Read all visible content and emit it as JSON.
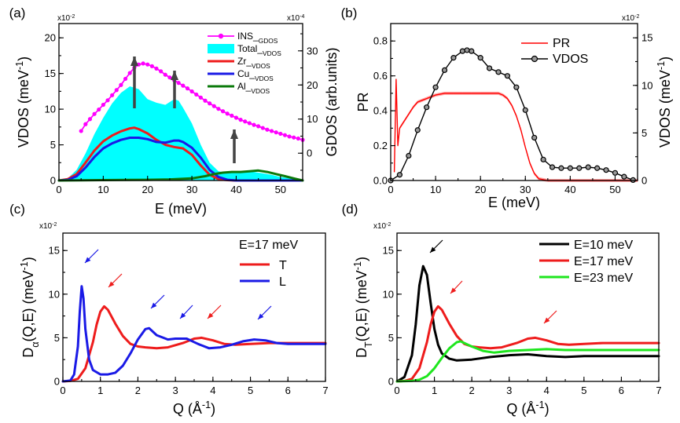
{
  "chart_data": [
    {
      "type": "area",
      "panel_label": "(a)",
      "xlabel": "E (meV)",
      "ylabel": "VDOS (meV⁻¹)",
      "ylabel_right": "GDOS (arb.units)",
      "y_multiplier": "x10⁻²",
      "y_right_multiplier": "x10⁻⁴",
      "xlim": [
        0,
        55
      ],
      "ylim": [
        0,
        22
      ],
      "y_right_lim": [
        -8,
        38
      ],
      "xticks": [
        0,
        10,
        20,
        30,
        40,
        50
      ],
      "yticks": [
        0,
        5,
        10,
        15,
        20
      ],
      "y_right_ticks": [
        0,
        10,
        20,
        30
      ],
      "legend_position": "top-right",
      "series": [
        {
          "name": "INS_GDOS",
          "axis": "right",
          "color": "#ff00ff",
          "marker": "circle",
          "x": [
            5,
            6,
            7,
            8,
            9,
            10,
            11,
            12,
            13,
            14,
            15,
            16,
            17,
            18,
            19,
            20,
            21,
            22,
            23,
            24,
            25,
            26,
            27,
            28,
            29,
            30,
            31,
            32,
            33,
            34,
            35,
            36,
            37,
            38,
            39,
            40,
            41,
            42,
            43,
            44,
            45,
            46,
            47,
            48,
            49,
            50,
            51,
            52,
            53,
            54,
            55
          ],
          "y": [
            6.5,
            8.5,
            10.0,
            11.5,
            12.8,
            14.2,
            15.5,
            17.0,
            18.5,
            20.0,
            21.8,
            23.5,
            25.0,
            26.0,
            26.3,
            26.0,
            25.5,
            24.8,
            24.0,
            23.0,
            22.2,
            21.4,
            20.6,
            19.8,
            19.0,
            18.1,
            17.2,
            16.3,
            15.4,
            14.6,
            13.8,
            13.0,
            12.3,
            11.6,
            11.0,
            10.4,
            9.8,
            9.3,
            8.8,
            8.3,
            7.9,
            7.4,
            6.9,
            6.5,
            6.1,
            5.7,
            5.3,
            4.9,
            4.6,
            4.3,
            3.9
          ]
        },
        {
          "name": "Total",
          "color": "#00ffff",
          "fill": true,
          "x": [
            0,
            2,
            4,
            6,
            8,
            10,
            12,
            14,
            16,
            18,
            20,
            22,
            24,
            26,
            27,
            28,
            30,
            32,
            34,
            36,
            38,
            40,
            42,
            44,
            46,
            48,
            50,
            52,
            54,
            55
          ],
          "y": [
            0,
            0.3,
            1.5,
            3.8,
            6.5,
            8.8,
            10.8,
            12.3,
            13.2,
            12.8,
            11.4,
            10.9,
            10.6,
            11.4,
            11.2,
            10.2,
            8.0,
            5.0,
            2.5,
            1.3,
            1.1,
            1.2,
            1.3,
            1.2,
            1.0,
            0.8,
            0.5,
            0.3,
            0.1,
            0
          ]
        },
        {
          "name": "Zr",
          "color": "#ee1c1c",
          "x": [
            0,
            2,
            4,
            6,
            8,
            10,
            12,
            14,
            16,
            17,
            18,
            20,
            22,
            24,
            26,
            28,
            30,
            32,
            34,
            36,
            38,
            40,
            42,
            45,
            50,
            55
          ],
          "y": [
            0,
            0.2,
            0.9,
            2.5,
            4.2,
            5.5,
            6.3,
            6.9,
            7.3,
            7.4,
            7.2,
            6.6,
            5.7,
            5.0,
            4.7,
            4.5,
            3.6,
            2.1,
            0.8,
            0.2,
            0.05,
            0,
            0,
            0,
            0,
            0
          ]
        },
        {
          "name": "Cu",
          "color": "#1a1ae6",
          "x": [
            0,
            2,
            4,
            6,
            8,
            10,
            12,
            14,
            16,
            18,
            20,
            22,
            24,
            26,
            27,
            28,
            30,
            32,
            34,
            36,
            38,
            40,
            45,
            50,
            55
          ],
          "y": [
            0,
            0.1,
            0.6,
            1.8,
            3.3,
            4.5,
            5.2,
            5.7,
            6.0,
            6.0,
            5.8,
            5.4,
            5.3,
            5.6,
            5.6,
            5.4,
            4.6,
            3.2,
            1.5,
            0.5,
            0.1,
            0,
            0,
            0,
            0
          ]
        },
        {
          "name": "Al",
          "color": "#0b7a0b",
          "x": [
            0,
            5,
            10,
            15,
            20,
            25,
            30,
            33,
            35,
            37,
            39,
            41,
            43,
            45,
            47,
            49,
            51,
            53,
            55
          ],
          "y": [
            0,
            0.02,
            0.05,
            0.08,
            0.1,
            0.15,
            0.3,
            0.6,
            0.9,
            1.1,
            1.2,
            1.2,
            1.3,
            1.4,
            1.2,
            0.9,
            0.6,
            0.3,
            0
          ]
        }
      ]
    },
    {
      "type": "line",
      "panel_label": "(b)",
      "xlabel": "E (meV)",
      "ylabel": "PR",
      "ylabel_right": "VDOS (meV⁻¹)",
      "y_right_multiplier": "x10⁻²",
      "xlim": [
        0,
        55
      ],
      "ylim": [
        0,
        0.9
      ],
      "y_right_lim": [
        0,
        16.5
      ],
      "xticks": [
        0,
        10,
        20,
        30,
        40,
        50
      ],
      "yticks": [
        0.0,
        0.2,
        0.4,
        0.6,
        0.8
      ],
      "y_right_ticks": [
        0,
        5,
        10,
        15
      ],
      "legend_position": "top-right",
      "series": [
        {
          "name": "PR",
          "color": "#ff0000",
          "x": [
            0.8,
            1.2,
            1.6,
            2,
            3,
            4,
            5,
            6,
            7,
            8,
            10,
            12,
            14,
            16,
            18,
            20,
            22,
            24,
            25,
            26,
            27,
            28,
            29,
            30,
            31,
            32,
            33,
            35,
            40,
            45,
            50,
            55
          ],
          "y": [
            0.05,
            0.58,
            0.2,
            0.3,
            0.34,
            0.38,
            0.42,
            0.45,
            0.46,
            0.47,
            0.49,
            0.5,
            0.5,
            0.5,
            0.5,
            0.5,
            0.5,
            0.5,
            0.49,
            0.47,
            0.43,
            0.37,
            0.29,
            0.19,
            0.1,
            0.04,
            0.01,
            0,
            0,
            0,
            0,
            0
          ]
        },
        {
          "name": "VDOS",
          "axis": "right",
          "color": "#000000",
          "marker": "circle-open",
          "x": [
            0,
            2,
            4,
            6,
            8,
            10,
            12,
            14,
            16,
            17,
            18,
            20,
            22,
            24,
            26,
            28,
            30,
            32,
            34,
            36,
            38,
            40,
            42,
            44,
            46,
            48,
            50,
            52,
            54
          ],
          "y": [
            0,
            0.6,
            2.6,
            5.3,
            7.7,
            9.8,
            11.6,
            12.9,
            13.6,
            13.7,
            13.6,
            12.9,
            11.8,
            11.4,
            11.0,
            9.8,
            7.4,
            4.5,
            2.2,
            1.4,
            1.3,
            1.3,
            1.3,
            1.4,
            1.3,
            1.1,
            0.8,
            0.4,
            0.05
          ]
        }
      ]
    },
    {
      "type": "line",
      "panel_label": "(c)",
      "xlabel": "Q (Å⁻¹)",
      "ylabel": "Dα(Q,E) (meV⁻¹)",
      "y_multiplier": "x10⁻²",
      "xlim": [
        0,
        7
      ],
      "ylim": [
        0,
        17
      ],
      "xticks": [
        0,
        1,
        2,
        3,
        4,
        5,
        6,
        7
      ],
      "yticks": [
        0,
        5,
        10,
        15
      ],
      "legend_title": "E=17 meV",
      "legend_position": "top-right",
      "series": [
        {
          "name": "T",
          "color": "#ee1c1c",
          "x": [
            0,
            0.2,
            0.4,
            0.6,
            0.8,
            0.9,
            1.0,
            1.1,
            1.2,
            1.4,
            1.6,
            1.8,
            2.0,
            2.2,
            2.5,
            2.8,
            3.2,
            3.5,
            3.7,
            4.0,
            4.3,
            4.6,
            5.0,
            5.5,
            6.0,
            6.5,
            7.0
          ],
          "y": [
            0,
            0.05,
            0.3,
            1.5,
            4.5,
            6.5,
            8.0,
            8.6,
            8.2,
            6.6,
            5.2,
            4.3,
            4.0,
            3.9,
            3.8,
            3.9,
            4.4,
            4.9,
            5.0,
            4.7,
            4.3,
            4.2,
            4.3,
            4.4,
            4.4,
            4.4,
            4.4
          ]
        },
        {
          "name": "L",
          "color": "#1a1ae6",
          "x": [
            0,
            0.2,
            0.3,
            0.4,
            0.45,
            0.5,
            0.55,
            0.6,
            0.7,
            0.8,
            1.0,
            1.2,
            1.4,
            1.6,
            1.8,
            2.0,
            2.2,
            2.3,
            2.5,
            2.8,
            3.0,
            3.3,
            3.6,
            3.9,
            4.2,
            4.5,
            4.8,
            5.1,
            5.4,
            5.7,
            6.0,
            6.5,
            7.0
          ],
          "y": [
            0,
            0.1,
            0.8,
            4.0,
            8.0,
            10.9,
            9.5,
            6.0,
            2.5,
            1.3,
            0.8,
            0.8,
            1.0,
            1.8,
            3.2,
            4.8,
            6.0,
            6.1,
            5.3,
            4.8,
            4.9,
            4.9,
            4.3,
            3.8,
            3.9,
            4.2,
            4.6,
            4.8,
            4.7,
            4.4,
            4.3,
            4.3,
            4.3
          ]
        }
      ]
    },
    {
      "type": "line",
      "panel_label": "(d)",
      "xlabel": "Q (Å⁻¹)",
      "ylabel": "DT(Q,E) (meV⁻¹)",
      "y_multiplier": "x10⁻²",
      "xlim": [
        0,
        7
      ],
      "ylim": [
        0,
        17
      ],
      "xticks": [
        0,
        1,
        2,
        3,
        4,
        5,
        6,
        7
      ],
      "yticks": [
        0,
        5,
        10,
        15
      ],
      "legend_position": "top-right",
      "series": [
        {
          "name": "E=10 meV",
          "color": "#000000",
          "x": [
            0,
            0.2,
            0.4,
            0.5,
            0.6,
            0.7,
            0.8,
            0.9,
            1.0,
            1.1,
            1.2,
            1.4,
            1.6,
            2.0,
            2.5,
            3.0,
            3.5,
            4.0,
            4.5,
            5.0,
            5.5,
            6.0,
            6.5,
            7.0
          ],
          "y": [
            0,
            0.5,
            3.0,
            6.5,
            11.0,
            13.2,
            12.2,
            9.0,
            6.0,
            4.2,
            3.2,
            2.6,
            2.4,
            2.5,
            2.8,
            3.0,
            3.1,
            2.9,
            2.8,
            2.9,
            2.9,
            2.9,
            2.9,
            2.9
          ]
        },
        {
          "name": "E=17 meV",
          "color": "#ee1c1c",
          "x": [
            0,
            0.2,
            0.4,
            0.6,
            0.8,
            0.9,
            1.0,
            1.1,
            1.2,
            1.4,
            1.6,
            1.8,
            2.0,
            2.2,
            2.5,
            2.8,
            3.2,
            3.5,
            3.7,
            4.0,
            4.3,
            4.6,
            5.0,
            5.5,
            6.0,
            6.5,
            7.0
          ],
          "y": [
            0,
            0.05,
            0.3,
            1.5,
            4.5,
            6.5,
            8.0,
            8.6,
            8.2,
            6.6,
            5.2,
            4.3,
            4.0,
            3.9,
            3.8,
            3.9,
            4.4,
            4.9,
            5.0,
            4.7,
            4.3,
            4.2,
            4.3,
            4.4,
            4.4,
            4.4,
            4.4
          ]
        },
        {
          "name": "E=23 meV",
          "color": "#1ee61e",
          "x": [
            0,
            0.4,
            0.6,
            0.8,
            1.0,
            1.2,
            1.4,
            1.6,
            1.7,
            1.8,
            2.0,
            2.3,
            2.6,
            3.0,
            3.5,
            4.0,
            4.5,
            5.0,
            5.5,
            6.0,
            6.5,
            7.0
          ],
          "y": [
            0,
            0.05,
            0.2,
            0.6,
            1.5,
            2.7,
            3.8,
            4.5,
            4.6,
            4.4,
            4.0,
            3.5,
            3.3,
            3.5,
            3.6,
            3.7,
            3.6,
            3.6,
            3.6,
            3.6,
            3.6,
            3.6
          ]
        }
      ]
    }
  ]
}
